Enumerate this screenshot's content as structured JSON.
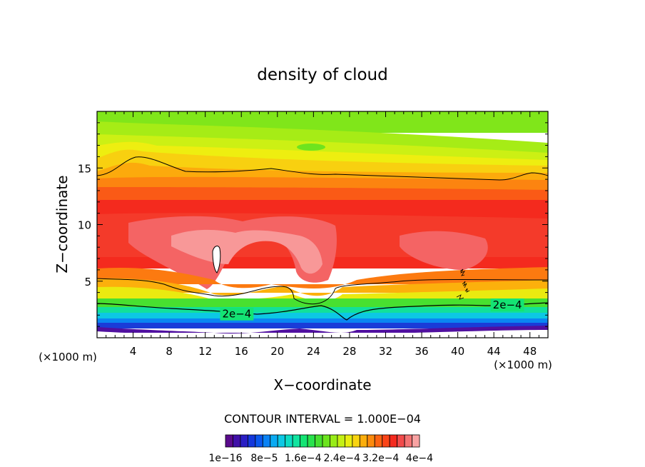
{
  "chart_data": {
    "type": "heatmap",
    "title": "density of cloud",
    "xlabel": "X−coordinate",
    "ylabel": "Z−coordinate",
    "x_units_left": "(×1000 m)",
    "x_units_right": "(×1000 m)",
    "x_range": [
      0,
      50
    ],
    "y_range": [
      0,
      20
    ],
    "x_ticks": [
      4,
      8,
      12,
      16,
      20,
      24,
      28,
      32,
      36,
      40,
      44,
      48
    ],
    "x_tick_labels": [
      "4",
      "8",
      "12",
      "16",
      "20",
      "24",
      "28",
      "32",
      "36",
      "40",
      "44",
      "48"
    ],
    "y_ticks": [
      5,
      10,
      15
    ],
    "y_tick_labels": [
      "5",
      "10",
      "15"
    ],
    "contour_interval_text": "CONTOUR INTERVAL = 1.000E−04",
    "contour_labels": [
      {
        "text": "2e−4",
        "x": 15.5,
        "z": 2.1
      },
      {
        "text": "2e−4",
        "x": 45.5,
        "z": 2.9
      }
    ],
    "colorbar_colors": [
      "#5a0a8c",
      "#4010a8",
      "#2a1ec4",
      "#1438dc",
      "#0a58ee",
      "#0a82f4",
      "#0aaaf2",
      "#0cc8e4",
      "#0cdcc4",
      "#10e4a0",
      "#14e474",
      "#28e24c",
      "#46e030",
      "#6ce41e",
      "#98ec18",
      "#c4f014",
      "#e8ee10",
      "#f8d410",
      "#fcae0c",
      "#fc8a0c",
      "#fc6412",
      "#fa4418",
      "#f42a1e",
      "#f24a4a",
      "#f47474",
      "#f8a2a2"
    ],
    "colorbar_labels": [
      "1e−16",
      "8e−5",
      "1.6e−4",
      "2.4e−4",
      "3.2e−4",
      "4e−4"
    ],
    "grid": false,
    "legend": "bottom colorbar"
  }
}
